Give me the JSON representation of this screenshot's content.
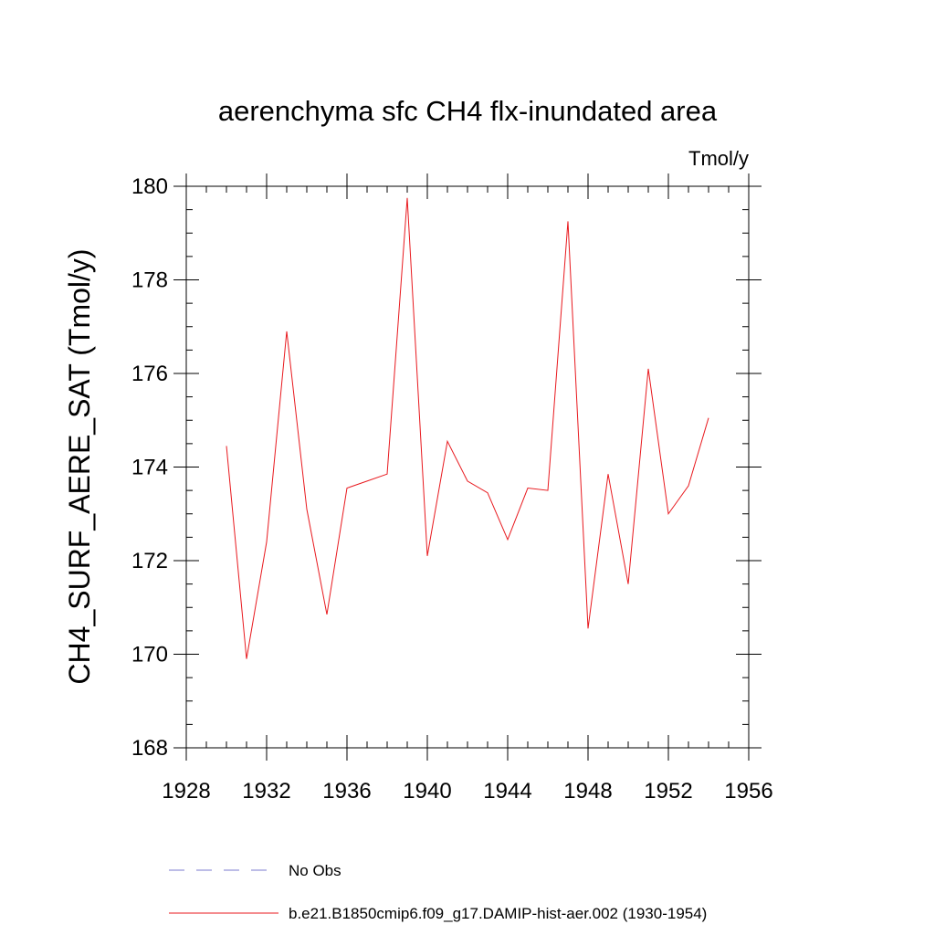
{
  "chart_data": {
    "type": "line",
    "title": "aerenchyma sfc CH4 flx-inundated area",
    "units": "Tmol/y",
    "ylabel": "CH4_SURF_AERE_SAT  (Tmol/y)",
    "xlabel": "",
    "xlim": [
      1928,
      1956
    ],
    "ylim": [
      168,
      180
    ],
    "x_ticks": [
      "1928",
      "1932",
      "1936",
      "1940",
      "1944",
      "1948",
      "1952",
      "1956"
    ],
    "y_ticks": [
      "168",
      "170",
      "172",
      "174",
      "176",
      "178",
      "180"
    ],
    "grid": false,
    "legend_position": "bottom",
    "series": [
      {
        "name": "b.e21.B1850cmip6.f09_g17.DAMIP-hist-aer.002 (1930-1954)",
        "color": "#e8191e",
        "style": "solid",
        "x": [
          1930,
          1931,
          1932,
          1933,
          1934,
          1935,
          1936,
          1937,
          1938,
          1939,
          1940,
          1941,
          1942,
          1943,
          1944,
          1945,
          1946,
          1947,
          1948,
          1949,
          1950,
          1951,
          1952,
          1953,
          1954
        ],
        "y": [
          174.45,
          169.9,
          172.4,
          176.9,
          173.1,
          170.85,
          173.55,
          173.7,
          173.85,
          179.75,
          172.1,
          174.55,
          173.7,
          173.45,
          172.45,
          173.55,
          173.5,
          179.25,
          170.55,
          173.85,
          171.5,
          176.1,
          173.0,
          173.6,
          175.05
        ]
      }
    ],
    "legend": [
      {
        "name": "No Obs",
        "color": "#7b7bcf",
        "style": "dashed"
      },
      {
        "name": "b.e21.B1850cmip6.f09_g17.DAMIP-hist-aer.002 (1930-1954)",
        "color": "#e8191e",
        "style": "solid"
      }
    ]
  }
}
